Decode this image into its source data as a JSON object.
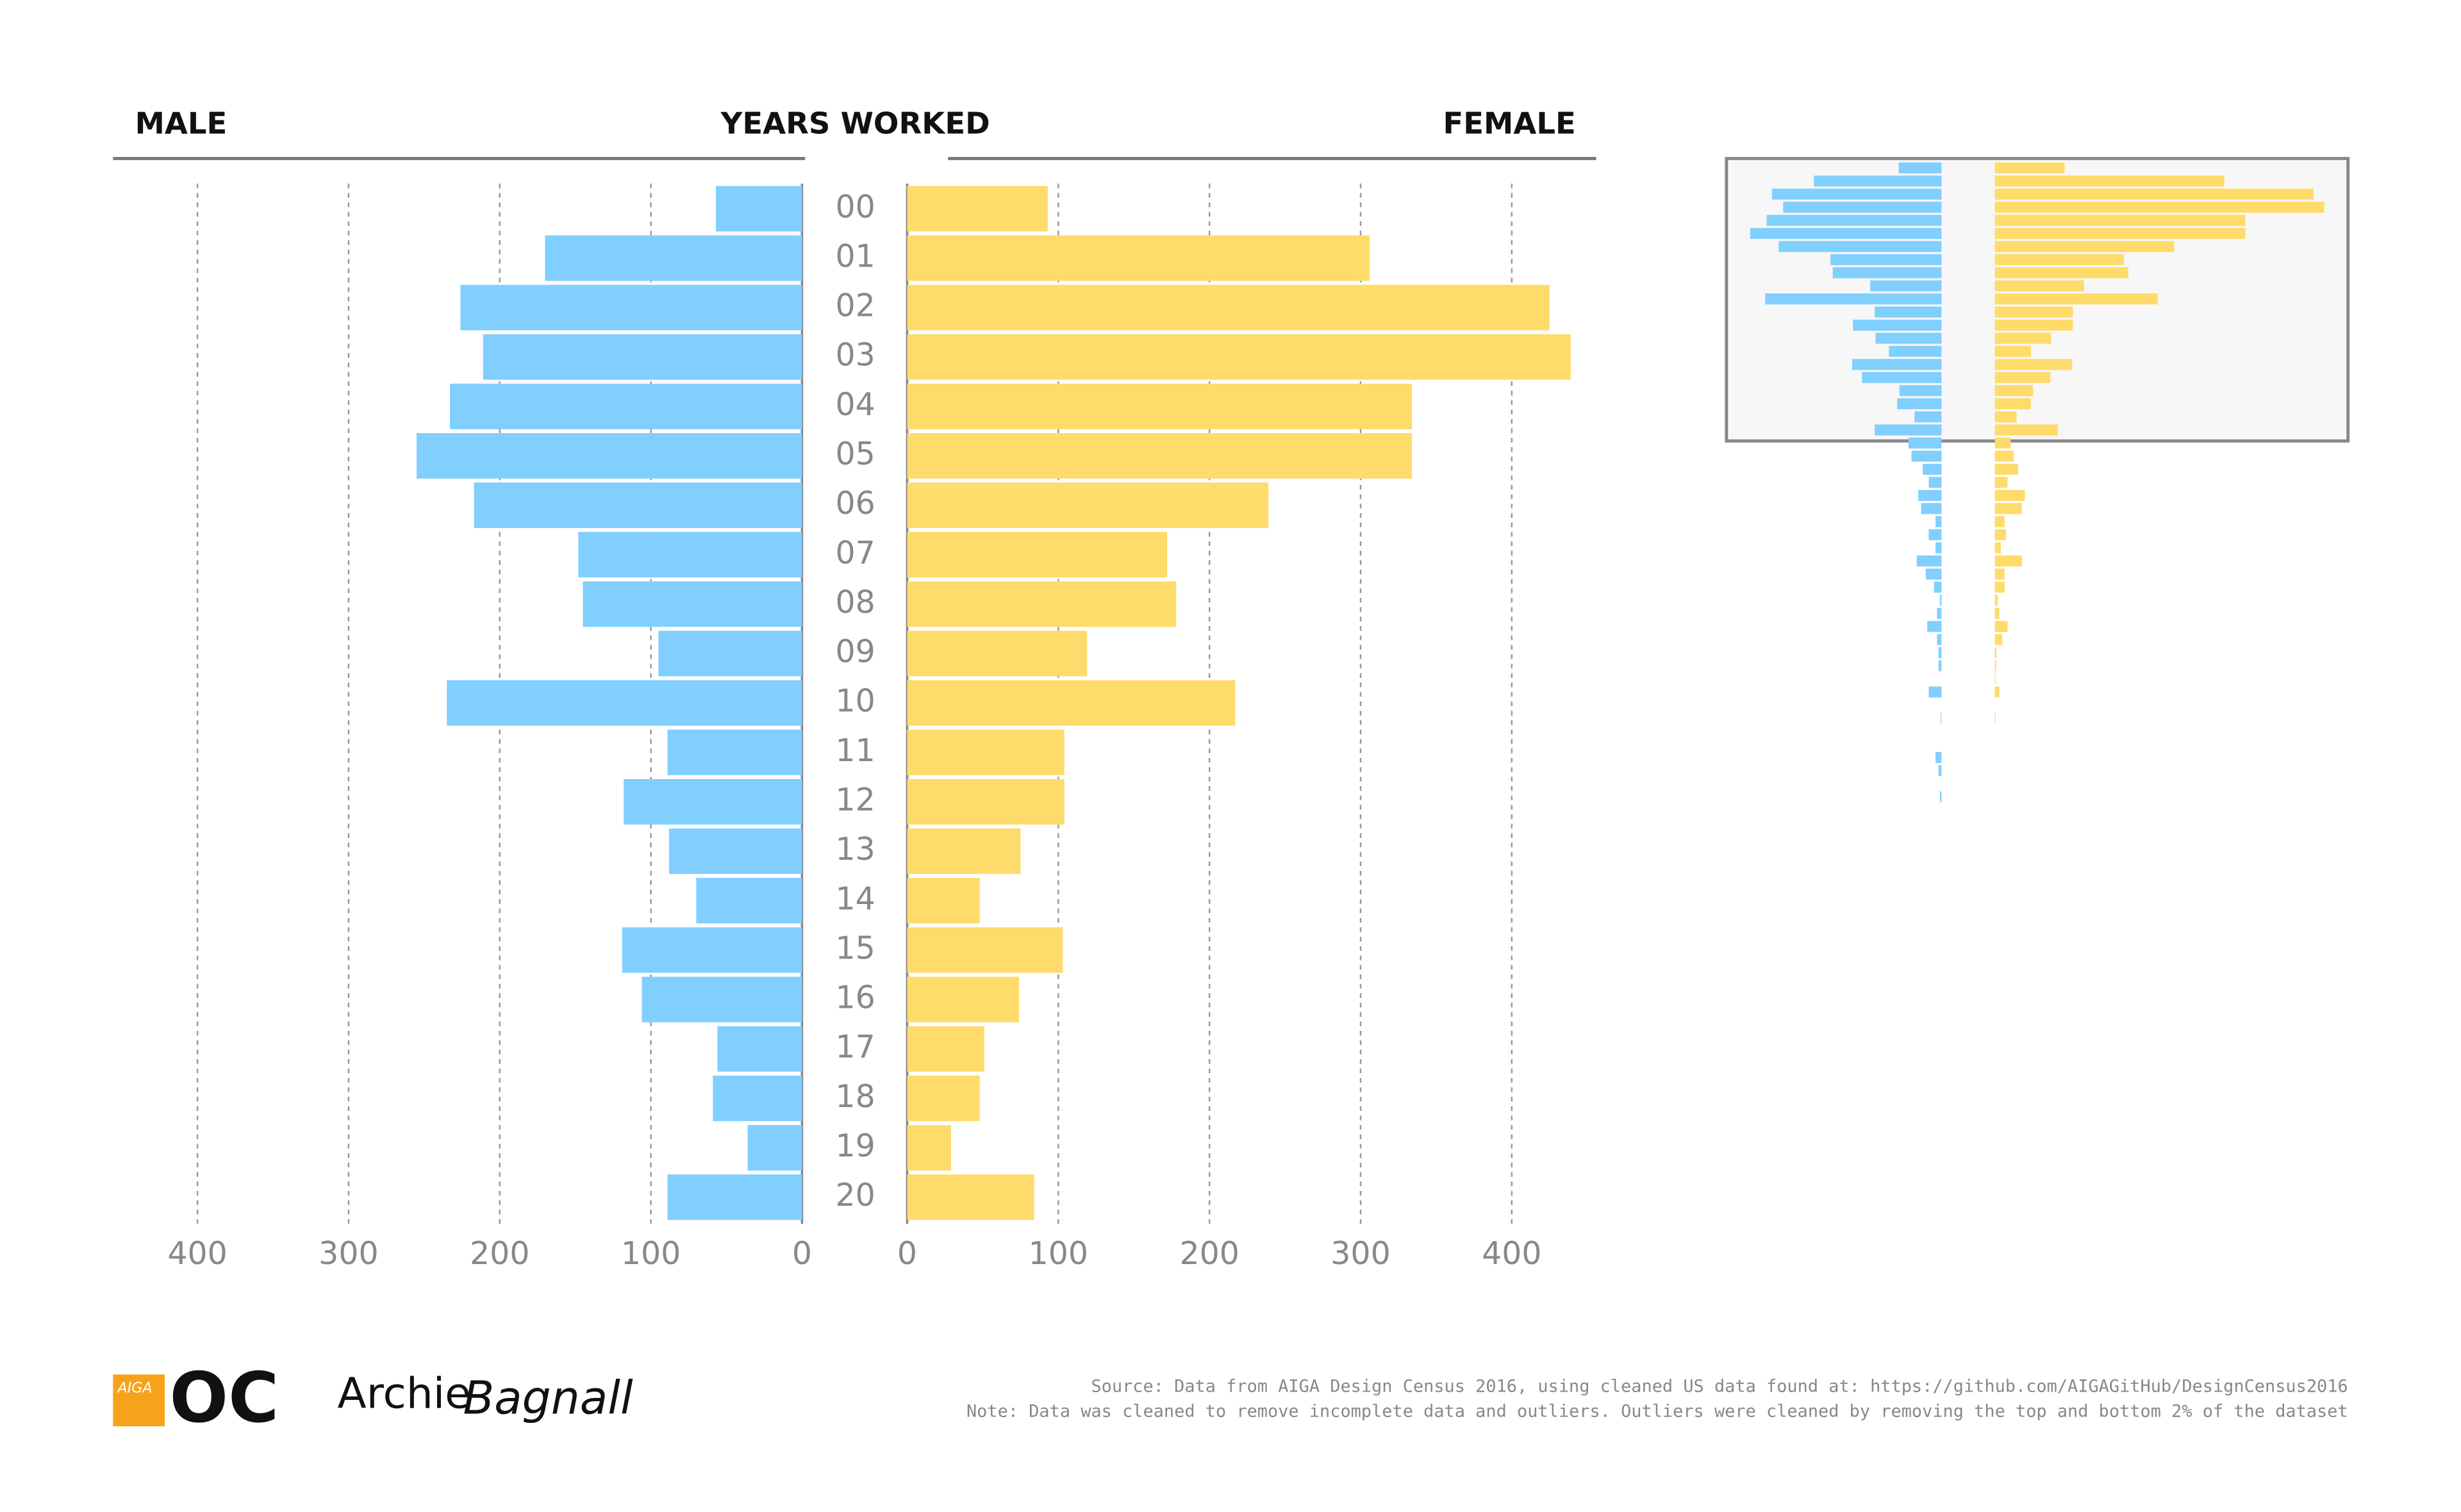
{
  "chart_data": [
    {
      "type": "bar",
      "orientation": "butterfly",
      "title": "YEARS WORKED",
      "categories": [
        "00",
        "01",
        "02",
        "03",
        "04",
        "05",
        "06",
        "07",
        "08",
        "09",
        "10",
        "11",
        "12",
        "13",
        "14",
        "15",
        "16",
        "17",
        "18",
        "19",
        "20"
      ],
      "series": [
        {
          "name": "MALE",
          "color": "#80cfff",
          "values": [
            57,
            170,
            226,
            211,
            233,
            255,
            217,
            148,
            145,
            95,
            235,
            89,
            118,
            88,
            70,
            119,
            106,
            56,
            59,
            36,
            89
          ]
        },
        {
          "name": "FEMALE",
          "color": "#ffdb6b",
          "values": [
            93,
            306,
            425,
            439,
            334,
            334,
            239,
            172,
            178,
            119,
            217,
            104,
            104,
            75,
            48,
            103,
            74,
            51,
            48,
            29,
            84
          ]
        }
      ],
      "xlim": [
        0,
        457
      ],
      "xticks": [
        0,
        100,
        200,
        300,
        400
      ],
      "grid": true
    },
    {
      "type": "bar",
      "orientation": "butterfly",
      "series": [
        {
          "color": "#80cfff",
          "values": [
            57,
            170,
            226,
            211,
            233,
            255,
            217,
            148,
            145,
            95,
            235,
            89,
            118,
            88,
            70,
            119,
            106,
            56,
            59,
            36,
            89,
            44,
            40,
            25,
            17,
            31,
            27,
            8,
            17,
            8,
            33,
            21,
            10,
            2,
            6,
            19,
            6,
            4,
            4,
            0,
            17,
            0,
            1,
            0,
            0,
            8,
            4,
            0,
            2
          ]
        },
        {
          "color": "#ffdb6b",
          "values": [
            93,
            306,
            425,
            439,
            334,
            334,
            239,
            172,
            178,
            119,
            217,
            104,
            104,
            75,
            48,
            103,
            74,
            51,
            48,
            29,
            84,
            21,
            25,
            31,
            17,
            40,
            36,
            13,
            15,
            8,
            36,
            13,
            13,
            4,
            6,
            17,
            10,
            2,
            2,
            1,
            6,
            0,
            1,
            0,
            0,
            0,
            0,
            0,
            0
          ]
        }
      ]
    }
  ],
  "footer": {
    "aiga": "AIGA",
    "oc": "OC",
    "author_first": "Archie",
    "author_last": "Bagnall",
    "source": "Source: Data from AIGA Design Census 2016, using cleaned US data found at: https://github.com/AIGAGitHub/DesignCensus2016",
    "note": "Note: Data was cleaned to remove incomplete data and outliers. Outliers were cleaned by removing the top and bottom 2% of the dataset"
  }
}
